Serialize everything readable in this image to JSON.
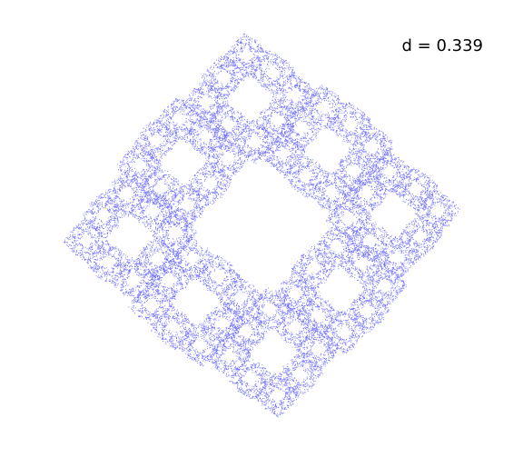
{
  "label": "d = 0.339",
  "colors": {
    "background": "#ffffff",
    "points": "#0000ff",
    "text": "#000000"
  }
}
